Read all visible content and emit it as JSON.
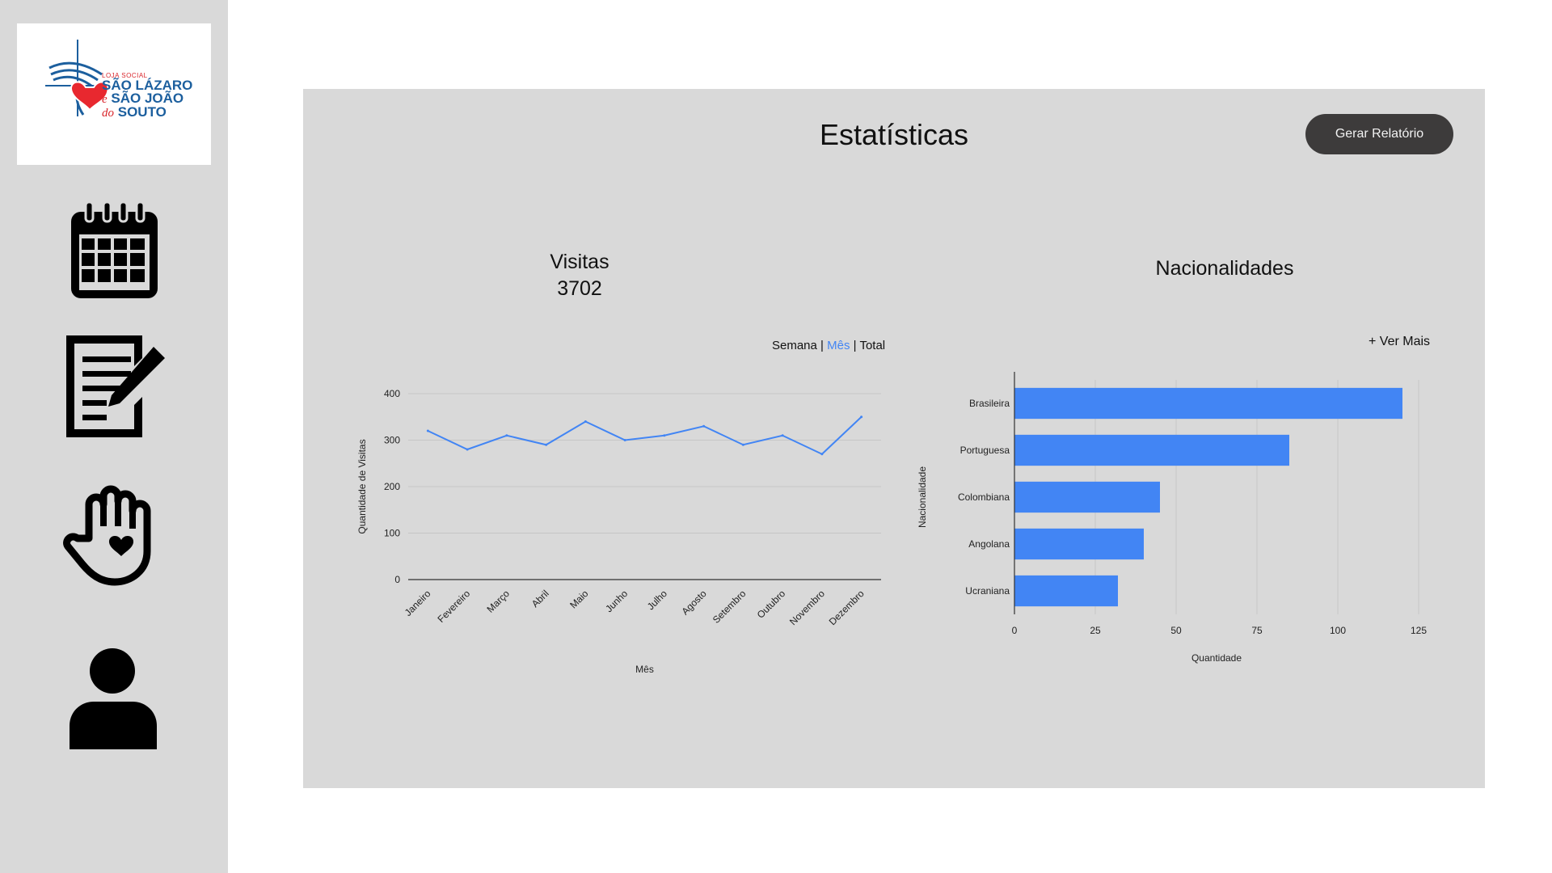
{
  "sidebar": {
    "logo": {
      "small": "LOJA SOCIAL",
      "line1": "SÃO LÁZARO",
      "line2_prefix": "e",
      "line2": "SÃO JOÃO",
      "line3_prefix": "do",
      "line3": "SOUTO"
    },
    "items": [
      {
        "icon": "calendar-icon"
      },
      {
        "icon": "notes-edit-icon"
      },
      {
        "icon": "hand-heart-icon"
      },
      {
        "icon": "user-icon"
      }
    ]
  },
  "page": {
    "title": "Estatísticas",
    "report_button": "Gerar Relatório"
  },
  "visits": {
    "title": "Visitas",
    "count": "3702",
    "period": {
      "options": [
        "Semana",
        "Mês",
        "Total"
      ],
      "separator": "|",
      "selected": "Mês"
    }
  },
  "nationalities": {
    "title": "Nacionalidades",
    "more_link": "+ Ver Mais"
  },
  "colors": {
    "accent": "#4285f4",
    "panel": "#d9d9d9",
    "button": "#3d3b3b"
  },
  "chart_data": [
    {
      "type": "line",
      "title": "",
      "xlabel": "Mês",
      "ylabel": "Quantidade de Visitas",
      "categories": [
        "Janeiro",
        "Fevereiro",
        "Março",
        "Abril",
        "Maio",
        "Junho",
        "Julho",
        "Agosto",
        "Setembro",
        "Outubro",
        "Novembro",
        "Dezembro"
      ],
      "series": [
        {
          "values": [
            320,
            280,
            310,
            290,
            340,
            300,
            310,
            330,
            290,
            310,
            270,
            350
          ]
        }
      ],
      "ylim": [
        0,
        400
      ],
      "yticks": [
        0,
        100,
        200,
        300,
        400
      ],
      "grid": true,
      "color": "#4285f4"
    },
    {
      "type": "bar",
      "orientation": "horizontal",
      "title": "",
      "xlabel": "Quantidade",
      "ylabel": "Nacionalidade",
      "categories": [
        "Brasileira",
        "Portuguesa",
        "Colombiana",
        "Angolana",
        "Ucraniana"
      ],
      "values": [
        120,
        85,
        45,
        40,
        32
      ],
      "xlim": [
        0,
        125
      ],
      "xticks": [
        0,
        25,
        50,
        75,
        100,
        125
      ],
      "grid": true,
      "color": "#4285f4"
    }
  ]
}
